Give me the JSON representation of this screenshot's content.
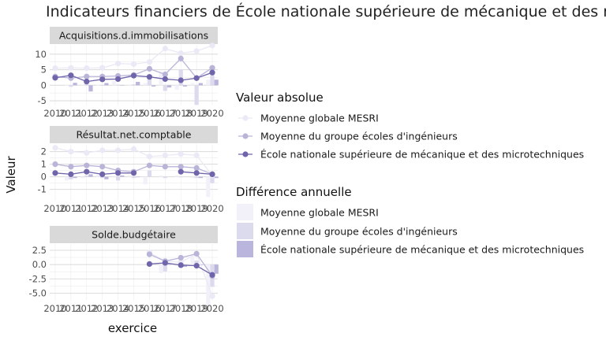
{
  "chart_data": {
    "type": "line",
    "title": "Indicateurs financiers de École nationale supérieure de mécanique et des microtechniques",
    "xlabel": "exercice",
    "ylabel": "Valeur",
    "years": [
      2010,
      2011,
      2012,
      2013,
      2014,
      2015,
      2016,
      2017,
      2018,
      2019,
      2020
    ],
    "legend_line_title": "Valeur absolue",
    "legend_bar_title": "Différence annuelle",
    "series_names": [
      "Moyenne globale MESRI",
      "Moyenne du groupe écoles d'ingénieurs",
      "École nationale supérieure de mécanique et des microtechniques"
    ],
    "colors": [
      "#ebe9f5",
      "#b9b5d9",
      "#6f65aa"
    ],
    "bar_colors": [
      "#f2f1f9",
      "#dcdaed",
      "#bab5dc"
    ],
    "panels": [
      {
        "name": "Acquisitions.d.immobilisations",
        "ylim": [
          -6.5,
          13
        ],
        "yticks": [
          -5,
          0,
          5,
          10
        ],
        "ytick_labels": [
          "-5",
          "0",
          "5",
          "10"
        ],
        "series": [
          {
            "values": [
              5.5,
              5.6,
              5.5,
              5.6,
              7.0,
              6.8,
              7.5,
              11.8,
              10.3,
              11.0,
              12.8
            ]
          },
          {
            "values": [
              2.8,
              2.3,
              2.8,
              2.8,
              3.0,
              3.3,
              5.3,
              3.5,
              8.6,
              2.3,
              5.6
            ]
          },
          {
            "values": [
              2.4,
              3.2,
              1.2,
              1.9,
              2.0,
              3.1,
              2.7,
              2.0,
              1.6,
              2.3,
              4.1
            ]
          }
        ],
        "diffs": [
          {
            "values": [
              null,
              0.1,
              -0.1,
              0.1,
              1.4,
              -0.2,
              0.7,
              4.3,
              -1.5,
              0.7,
              1.8
            ]
          },
          {
            "values": [
              null,
              -0.5,
              0.5,
              0.0,
              0.2,
              0.3,
              2.0,
              -1.8,
              5.1,
              -6.3,
              3.3
            ]
          },
          {
            "values": [
              null,
              0.8,
              -2.0,
              0.7,
              0.1,
              1.1,
              -0.4,
              -0.7,
              -0.4,
              0.7,
              1.8
            ]
          }
        ]
      },
      {
        "name": "Résultat.net.comptable",
        "ylim": [
          -1.9,
          2.6
        ],
        "yticks": [
          -1,
          0,
          1,
          2
        ],
        "ytick_labels": [
          "-1",
          "0",
          "1",
          "2"
        ],
        "series": [
          {
            "values": [
              2.3,
              2.0,
              1.9,
              2.1,
              2.1,
              2.2,
              1.6,
              1.7,
              1.8,
              1.7,
              0.1
            ]
          },
          {
            "values": [
              1.0,
              0.8,
              0.9,
              0.8,
              0.5,
              0.4,
              0.9,
              0.8,
              0.8,
              0.7,
              0.2
            ]
          },
          {
            "values": [
              0.3,
              0.2,
              0.4,
              0.2,
              0.3,
              0.3,
              null,
              null,
              0.4,
              0.3,
              0.2
            ]
          }
        ],
        "diffs": [
          {
            "values": [
              null,
              -0.3,
              -0.1,
              0.2,
              0.0,
              0.1,
              -0.6,
              0.1,
              0.1,
              -0.1,
              -1.6
            ]
          },
          {
            "values": [
              null,
              -0.2,
              0.1,
              -0.1,
              -0.3,
              -0.1,
              0.5,
              -0.1,
              0.0,
              -0.1,
              -0.5
            ]
          },
          {
            "values": [
              null,
              -0.1,
              0.2,
              -0.2,
              0.1,
              0.0,
              null,
              null,
              null,
              -0.1,
              -0.1
            ]
          }
        ]
      },
      {
        "name": "Solde.budgétaire",
        "ylim": [
          -6.3,
          3.6
        ],
        "yticks": [
          -5,
          -2.5,
          0,
          2.5
        ],
        "ytick_labels": [
          "-5.0",
          "-2.5",
          "0.0",
          "2.5"
        ],
        "series": [
          {
            "values": [
              null,
              null,
              null,
              null,
              null,
              null,
              2.1,
              0.6,
              0.4,
              1.9,
              -5.5
            ]
          },
          {
            "values": [
              null,
              null,
              null,
              null,
              null,
              null,
              1.8,
              0.6,
              1.2,
              1.9,
              -2.0
            ]
          },
          {
            "values": [
              null,
              null,
              null,
              null,
              null,
              null,
              0.1,
              0.3,
              -0.1,
              -0.2,
              -1.8
            ]
          }
        ],
        "diffs": [
          {
            "values": [
              null,
              null,
              null,
              null,
              null,
              null,
              null,
              -1.5,
              -0.2,
              1.5,
              -7.4
            ]
          },
          {
            "values": [
              null,
              null,
              null,
              null,
              null,
              null,
              null,
              -1.2,
              0.6,
              0.7,
              -3.9
            ]
          },
          {
            "values": [
              null,
              null,
              null,
              null,
              null,
              null,
              null,
              0.2,
              -0.4,
              -0.1,
              -1.6
            ]
          }
        ]
      }
    ]
  }
}
